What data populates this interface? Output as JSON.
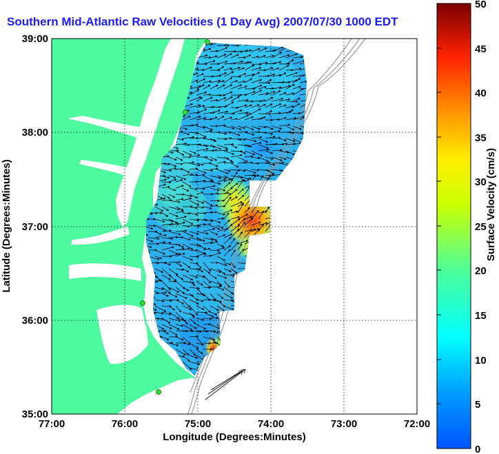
{
  "title": "Southern Mid-Atlantic Raw Velocities (1 Day Avg) 2007/07/30 1000 EDT",
  "x_axis": {
    "label": "Longitude (Degrees:Minutes)",
    "ticks": [
      "77:00",
      "76:00",
      "75:00",
      "74:00",
      "73:00",
      "72:00"
    ]
  },
  "y_axis": {
    "label": "Latitude (Degrees:Minutes)",
    "ticks": [
      "39:00",
      "38:00",
      "37:00",
      "36:00",
      "35:00"
    ]
  },
  "colorbar": {
    "label": "Surface Velocity (cm/s)",
    "ticks": [
      "0",
      "5",
      "10",
      "15",
      "20",
      "25",
      "30",
      "35",
      "40",
      "45",
      "50"
    ],
    "min": 0,
    "max": 50
  },
  "colors": {
    "land": "#4dfaa0",
    "water": "#ffffff",
    "title": "#1a1aff",
    "station": "#33dd33",
    "bathymetry": "#999999",
    "grid": "#000000"
  }
}
